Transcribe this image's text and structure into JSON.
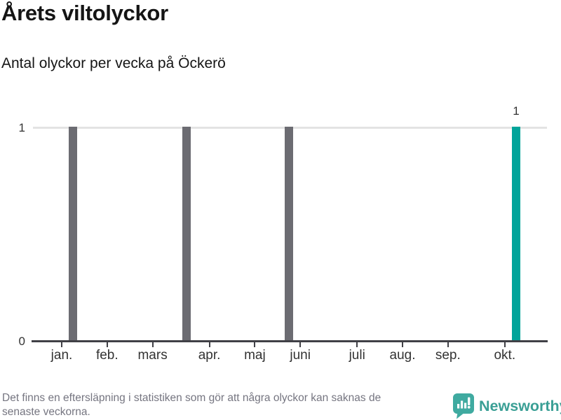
{
  "title": "Årets viltolyckor",
  "subtitle": "Antal olyckor per vecka på Öckerö",
  "footer": {
    "line1": "Det finns en eftersläpning i statistiken som gör att några olyckor kan saknas de",
    "line2": "senaste veckorna."
  },
  "branding": {
    "name": "Newsworthy",
    "icon": "newsworthy-bubble-bar-chart-icon"
  },
  "colors": {
    "bar": "#6c6c72",
    "bar_highlight": "#00a49a",
    "gridline": "#e3e3e3",
    "axis": "#404046",
    "tick_label": "#333333",
    "footer_text": "#757580",
    "brand_icon": "#3faaa0",
    "brand_text": "#3a9f95"
  },
  "chart_data": {
    "type": "bar",
    "title": "Årets viltolyckor",
    "subtitle": "Antal olyckor per vecka på Öckerö",
    "xlabel": "",
    "ylabel": "",
    "x_unit": "week of year",
    "ylim": [
      0,
      1
    ],
    "yticks": [
      0,
      1
    ],
    "grid": "y-gridline at 1 only",
    "legend": "none",
    "month_ticks": [
      {
        "label": "jan.",
        "week": 1
      },
      {
        "label": "feb.",
        "week": 5
      },
      {
        "label": "mars",
        "week": 9
      },
      {
        "label": "apr.",
        "week": 14
      },
      {
        "label": "maj",
        "week": 18
      },
      {
        "label": "juni",
        "week": 22
      },
      {
        "label": "juli",
        "week": 27
      },
      {
        "label": "aug.",
        "week": 31
      },
      {
        "label": "sep.",
        "week": 35
      },
      {
        "label": "okt.",
        "week": 40
      }
    ],
    "bars": [
      {
        "week": 2,
        "value": 1,
        "highlight": false
      },
      {
        "week": 12,
        "value": 1,
        "highlight": false
      },
      {
        "week": 21,
        "value": 1,
        "highlight": false
      },
      {
        "week": 41,
        "value": 1,
        "highlight": true,
        "label": "1"
      }
    ]
  }
}
